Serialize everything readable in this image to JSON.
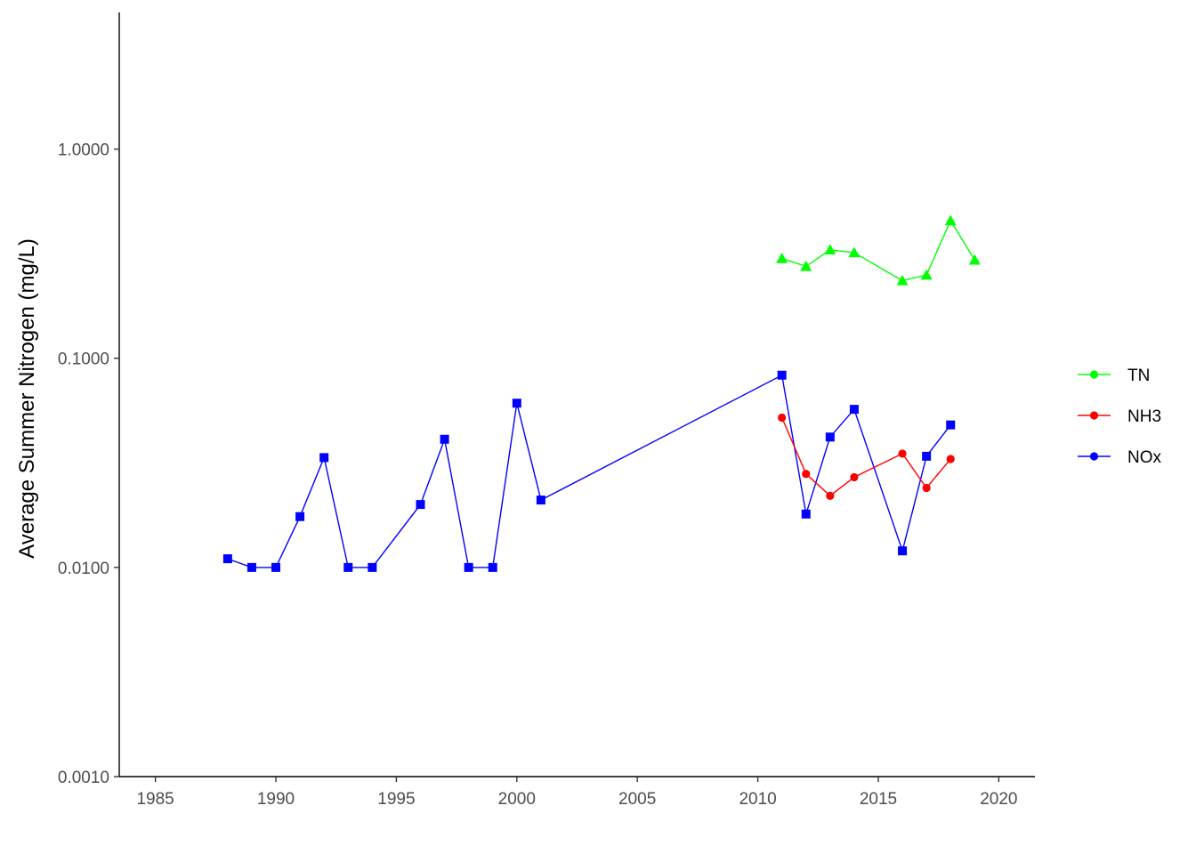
{
  "chart_data": {
    "type": "line",
    "ylabel": "Average Summer Nitrogen (mg/L)",
    "xlabel": "",
    "y_scale": "log10",
    "xlim": [
      1983.5,
      2021.5
    ],
    "ylim": [
      0.001,
      4.5
    ],
    "x_ticks": [
      1985,
      1990,
      1995,
      2000,
      2005,
      2010,
      2015,
      2020
    ],
    "x_tick_labels": [
      "1985",
      "1990",
      "1995",
      "2000",
      "2005",
      "2010",
      "2015",
      "2020"
    ],
    "y_ticks": [
      0.001,
      0.01,
      0.1,
      1
    ],
    "y_tick_labels": [
      "0.0010",
      "0.0100",
      "0.1000",
      "1.0000"
    ],
    "grid": false,
    "legend_position": "right",
    "series": [
      {
        "name": "TN",
        "color": "#00ff00",
        "marker": "triangle",
        "x": [
          2011,
          2012,
          2013,
          2014,
          2016,
          2017,
          2018,
          2019
        ],
        "y": [
          0.3,
          0.275,
          0.33,
          0.32,
          0.235,
          0.25,
          0.455,
          0.295
        ]
      },
      {
        "name": "NH3",
        "color": "#ff0000",
        "marker": "circle",
        "x": [
          2011,
          2012,
          2013,
          2014,
          2016,
          2017,
          2018
        ],
        "y": [
          0.052,
          0.028,
          0.022,
          0.027,
          0.035,
          0.024,
          0.033
        ]
      },
      {
        "name": "NOx",
        "color": "#0000ff",
        "marker": "square",
        "x": [
          1988,
          1989,
          1990,
          1991,
          1992,
          1993,
          1994,
          1996,
          1997,
          1998,
          1999,
          2000,
          2001,
          2011,
          2012,
          2013,
          2014,
          2016,
          2017,
          2018
        ],
        "y": [
          0.011,
          0.01,
          0.01,
          0.0175,
          0.0335,
          0.01,
          0.01,
          0.02,
          0.041,
          0.01,
          0.01,
          0.061,
          0.021,
          0.083,
          0.018,
          0.042,
          0.057,
          0.012,
          0.034,
          0.048
        ]
      }
    ],
    "legend_order": [
      "TN",
      "NH3",
      "NOx"
    ]
  }
}
